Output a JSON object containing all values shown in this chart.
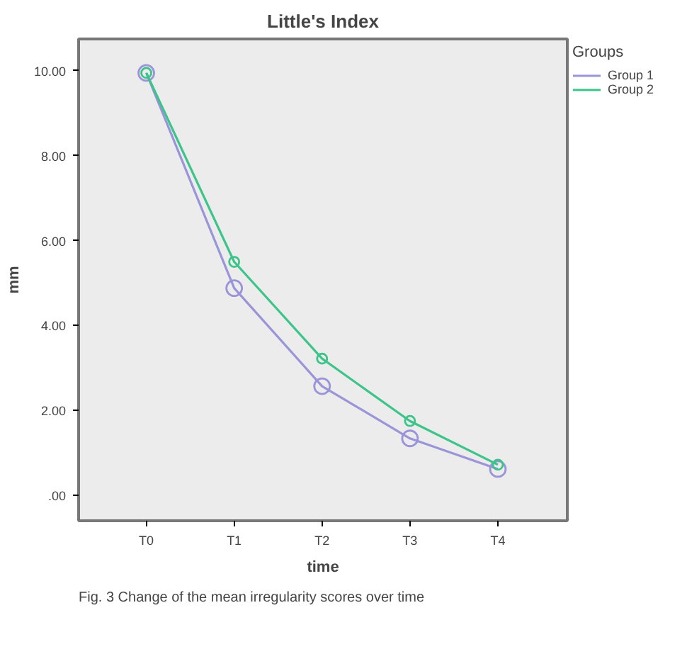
{
  "chart_data": {
    "type": "line",
    "title": "Little's Index",
    "xlabel": "time",
    "ylabel": "mm",
    "legend_title": "Groups",
    "categories": [
      "T0",
      "T1",
      "T2",
      "T3",
      "T4"
    ],
    "series": [
      {
        "name": "Group 1",
        "color": "#9a94d8",
        "values": [
          9.95,
          4.88,
          2.57,
          1.34,
          0.62
        ]
      },
      {
        "name": "Group 2",
        "color": "#3cc48a",
        "values": [
          9.95,
          5.5,
          3.22,
          1.75,
          0.72
        ]
      }
    ],
    "ylim": [
      -0.6,
      10.75
    ],
    "yticks": [
      {
        "value": 0,
        "label": ".00"
      },
      {
        "value": 2,
        "label": "2.00"
      },
      {
        "value": 4,
        "label": "4.00"
      },
      {
        "value": 6,
        "label": "6.00"
      },
      {
        "value": 8,
        "label": "8.00"
      },
      {
        "value": 10,
        "label": "10.00"
      }
    ],
    "marker": "circle",
    "line_style": "solid",
    "legend": "top right",
    "grid": false,
    "annotations": [
      "Fig. 3 Change of the mean irregularity scores over time"
    ]
  }
}
